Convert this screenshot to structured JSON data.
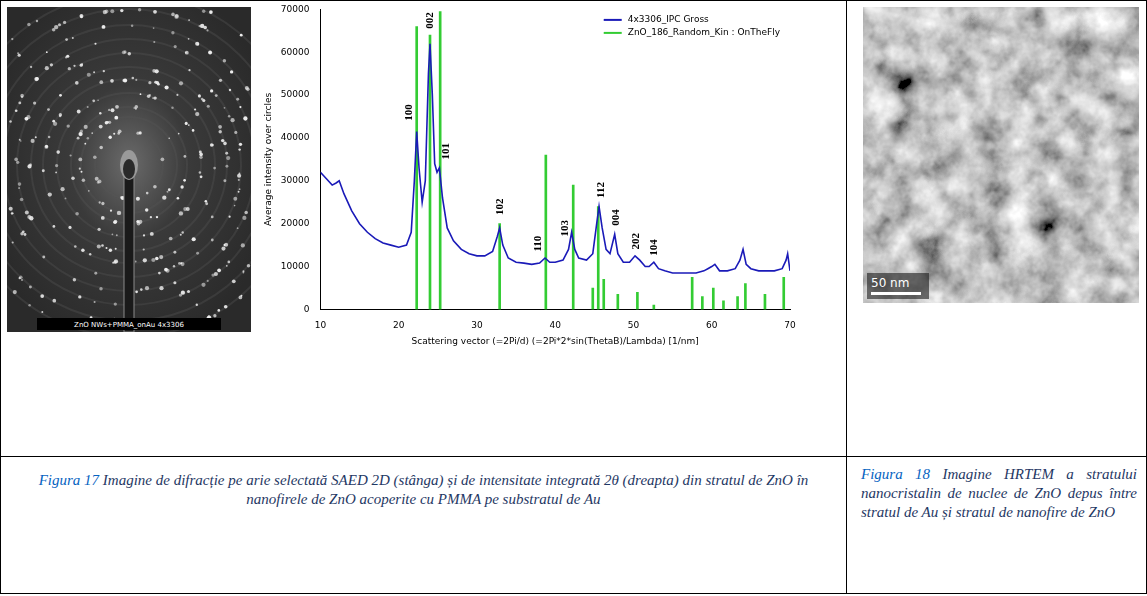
{
  "chart_data": {
    "type": "line",
    "x_label": "Scattering vector (=2Pi/d) (=2Pi*2*sin(ThetaB)/Lambda) [1/nm]",
    "y_label": "Average intensity over circles",
    "xlim": [
      10,
      70
    ],
    "xticks": [
      10,
      20,
      30,
      40,
      50,
      60,
      70
    ],
    "ylim": [
      0,
      70000
    ],
    "yticks": [
      0,
      10000,
      20000,
      30000,
      40000,
      50000,
      60000,
      70000
    ],
    "grid": false,
    "legend": "upper right",
    "series": [
      {
        "name": "4x3306_IPC Gross",
        "type": "line",
        "color": "#1a1ab8",
        "x": [
          10,
          10.5,
          11,
          11.5,
          12,
          12.4,
          13,
          14,
          15,
          16,
          17,
          18,
          19,
          20,
          21,
          21.6,
          22.0,
          22.3,
          22.6,
          23.0,
          23.4,
          23.8,
          24.0,
          24.3,
          24.6,
          24.9,
          25.2,
          25.6,
          26.2,
          27,
          28,
          29,
          30,
          31,
          32,
          32.6,
          32.9,
          33.3,
          34,
          35,
          36,
          37,
          38,
          38.7,
          39.3,
          40,
          41,
          41.7,
          42.1,
          42.5,
          43,
          44,
          44.8,
          45.3,
          45.6,
          46.0,
          46.5,
          47.0,
          47.6,
          48.0,
          48.7,
          49.5,
          50.2,
          50.8,
          51.5,
          52.0,
          52.6,
          53.2,
          54,
          55,
          56,
          57,
          58,
          59,
          59.5,
          60.0,
          60.4,
          61,
          62,
          63,
          63.6,
          64.0,
          64.4,
          65,
          66,
          67,
          68,
          69,
          69.5,
          69.7,
          70
        ],
        "values": [
          32000,
          31000,
          30000,
          29000,
          29500,
          30000,
          27000,
          23000,
          20000,
          18000,
          16500,
          15500,
          15000,
          14500,
          15000,
          18000,
          30000,
          41500,
          33000,
          25000,
          30000,
          55000,
          62000,
          50000,
          34000,
          32000,
          33000,
          26000,
          19000,
          16000,
          14000,
          13000,
          12500,
          12500,
          13500,
          17000,
          19000,
          15000,
          12000,
          11000,
          10800,
          10500,
          10800,
          12000,
          11000,
          11000,
          11500,
          14000,
          18000,
          14000,
          12000,
          11500,
          13000,
          20000,
          24000,
          19000,
          14000,
          13000,
          17500,
          13000,
          11000,
          11000,
          12500,
          11500,
          10000,
          10000,
          11000,
          9500,
          9000,
          8500,
          8500,
          8500,
          8500,
          9000,
          9500,
          10000,
          10500,
          9000,
          9000,
          9500,
          11500,
          14000,
          10500,
          9500,
          9000,
          9000,
          9000,
          9500,
          11500,
          13000,
          9000
        ]
      },
      {
        "name": "ZnO_186_Random_Kin : OnTheFly",
        "type": "bar",
        "color": "#33cc33",
        "x": [
          22.3,
          24.0,
          25.3,
          32.9,
          38.8,
          42.3,
          44.8,
          45.5,
          46.2,
          48.0,
          50.5,
          52.6,
          57.5,
          58.8,
          60.2,
          61.5,
          63.3,
          64.3,
          66.8,
          69.2
        ],
        "values": [
          66000,
          64000,
          69500,
          20000,
          36000,
          29000,
          5000,
          24000,
          7000,
          3500,
          4000,
          1000,
          7500,
          3000,
          5000,
          2000,
          3000,
          6000,
          3500,
          7500
        ]
      }
    ],
    "annotations": [
      {
        "text": "100",
        "x": 21.3,
        "y": 44000
      },
      {
        "text": "002",
        "x": 24.0,
        "y": 65500
      },
      {
        "text": "101",
        "x": 26.1,
        "y": 35000
      },
      {
        "text": "102",
        "x": 33.0,
        "y": 22000
      },
      {
        "text": "110",
        "x": 37.8,
        "y": 13500
      },
      {
        "text": "103",
        "x": 41.3,
        "y": 17000
      },
      {
        "text": "112",
        "x": 45.9,
        "y": 26000
      },
      {
        "text": "004",
        "x": 47.8,
        "y": 19500
      },
      {
        "text": "202",
        "x": 50.4,
        "y": 14000
      },
      {
        "text": "104",
        "x": 52.7,
        "y": 12500
      }
    ]
  },
  "saed_image": {
    "label": "ZnO NWs+PMMA_onAu 4x3306"
  },
  "hrtem_image": {
    "scale_bar": "50 nm"
  },
  "captions": [
    {
      "label": "Figura 17",
      "text": "Imagine de difracție pe arie selectată SAED 2D (stânga) și de intensitate integrată 2θ (dreapta) din stratul de ZnO în nanofirele de ZnO acoperite cu PMMA pe substratul de Au"
    },
    {
      "label": "Figura 18",
      "text": "Imagine HRTEM a stratului nanocristalin de nuclee de ZnO depus între stratul de Au și stratul de nanofire de ZnO"
    }
  ]
}
